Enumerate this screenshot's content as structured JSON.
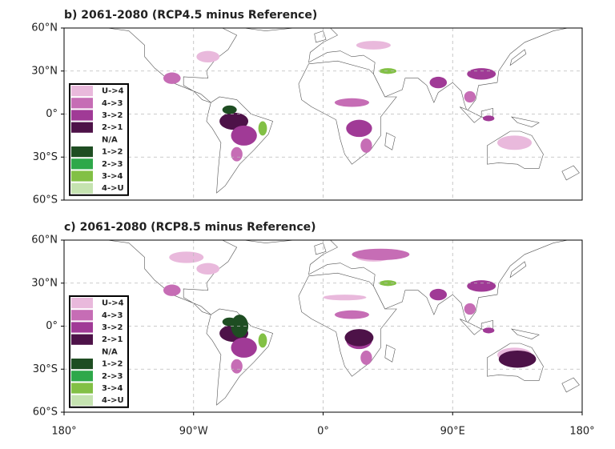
{
  "panels": [
    {
      "title": "b) 2061-2080 (RCP4.5 minus Reference)",
      "lat_labels": [
        "60°N",
        "30°N",
        "0°",
        "30°S",
        "60°S"
      ]
    },
    {
      "title": "c) 2061-2080 (RCP8.5 minus Reference)",
      "lat_labels": [
        "60°N",
        "30°N",
        "0°",
        "30°S",
        "60°S"
      ]
    }
  ],
  "lon_labels": [
    "180°",
    "90°W",
    "0°",
    "90°E",
    "180°"
  ],
  "legend": [
    {
      "label": "U->4",
      "color": "#e9b9dc"
    },
    {
      "label": "4->3",
      "color": "#c66db5"
    },
    {
      "label": "3->2",
      "color": "#a03a96"
    },
    {
      "label": "2->1",
      "color": "#4d1248"
    },
    {
      "label": "N/A",
      "color": "#ffffff"
    },
    {
      "label": "1->2",
      "color": "#1e4d22"
    },
    {
      "label": "2->3",
      "color": "#2ea84a"
    },
    {
      "label": "3->4",
      "color": "#82c045"
    },
    {
      "label": "4->U",
      "color": "#c5e3b0"
    }
  ]
}
